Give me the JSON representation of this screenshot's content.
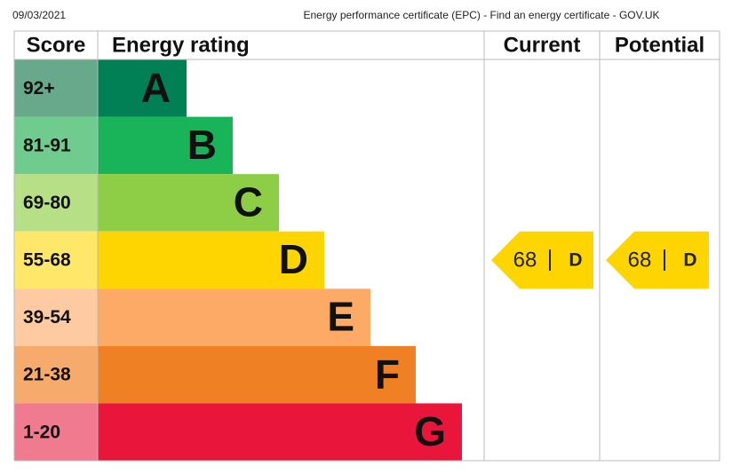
{
  "header": {
    "date": "09/03/2021",
    "title": "Energy performance certificate (EPC) - Find an energy certificate - GOV.UK"
  },
  "table": {
    "columns": [
      "Score",
      "Energy rating",
      "Current",
      "Potential"
    ],
    "bands": [
      {
        "score": "92+",
        "letter": "A",
        "color": "#008054",
        "score_color": "#68a88b"
      },
      {
        "score": "81-91",
        "letter": "B",
        "color": "#19b459",
        "score_color": "#6fcb8e"
      },
      {
        "score": "69-80",
        "letter": "C",
        "color": "#8dce46",
        "score_color": "#b7df86"
      },
      {
        "score": "55-68",
        "letter": "D",
        "color": "#ffd500",
        "score_color": "#ffe76a"
      },
      {
        "score": "39-54",
        "letter": "E",
        "color": "#fcaa65",
        "score_color": "#fdcaa1"
      },
      {
        "score": "21-38",
        "letter": "F",
        "color": "#ef8023",
        "score_color": "#f6ab6c"
      },
      {
        "score": "1-20",
        "letter": "G",
        "color": "#e9153b",
        "score_color": "#f07a8f"
      }
    ],
    "current": {
      "score": 68,
      "letter": "D"
    },
    "potential": {
      "score": 68,
      "letter": "D"
    }
  }
}
